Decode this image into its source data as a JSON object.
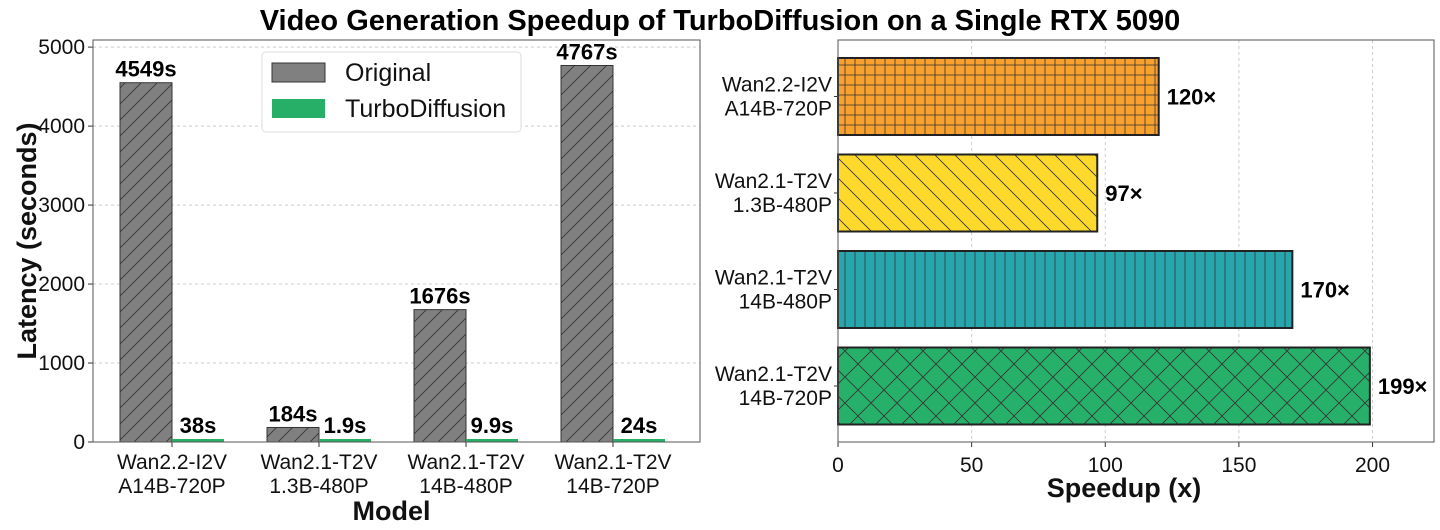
{
  "title": "Video Generation Speedup of TurboDiffusion on a Single RTX 5090",
  "chart_data": [
    {
      "type": "bar",
      "orientation": "vertical",
      "categories": [
        [
          "Wan2.2-I2V",
          "A14B-720P"
        ],
        [
          "Wan2.1-T2V",
          "1.3B-480P"
        ],
        [
          "Wan2.1-T2V",
          "14B-480P"
        ],
        [
          "Wan2.1-T2V",
          "14B-720P"
        ]
      ],
      "series": [
        {
          "name": "Original",
          "values": [
            4549,
            184,
            1676,
            4767
          ],
          "labels": [
            "4549s",
            "184s",
            "1676s",
            "4767s"
          ],
          "color": "#808080",
          "hatch": "/"
        },
        {
          "name": "TurboDiffusion",
          "values": [
            38,
            1.9,
            9.9,
            24
          ],
          "labels": [
            "38s",
            "1.9s",
            "9.9s",
            "24s"
          ],
          "color": "#27ae67",
          "hatch": "none"
        }
      ],
      "xlabel": "Model",
      "ylabel": "Latency (seconds)",
      "ylim": [
        0,
        5090
      ],
      "yticks": [
        0,
        1000,
        2000,
        3000,
        4000,
        5000
      ],
      "grid": "y-dashed",
      "legend": "top-center"
    },
    {
      "type": "bar",
      "orientation": "horizontal",
      "categories": [
        [
          "Wan2.2-I2V",
          "A14B-720P"
        ],
        [
          "Wan2.1-T2V",
          "1.3B-480P"
        ],
        [
          "Wan2.1-T2V",
          "14B-480P"
        ],
        [
          "Wan2.1-T2V",
          "14B-720P"
        ]
      ],
      "values": [
        120,
        97,
        170,
        199
      ],
      "labels": [
        "120×",
        "97×",
        "170×",
        "199×"
      ],
      "colors": [
        "#f9a12e",
        "#fcd92a",
        "#27a6ad",
        "#27b06a"
      ],
      "hatches": [
        "+",
        "\\",
        "|",
        "x"
      ],
      "xlabel": "Speedup (x)",
      "xlim": [
        0,
        223
      ],
      "xticks": [
        0,
        50,
        100,
        150,
        200
      ],
      "grid": "x-dashed"
    }
  ]
}
